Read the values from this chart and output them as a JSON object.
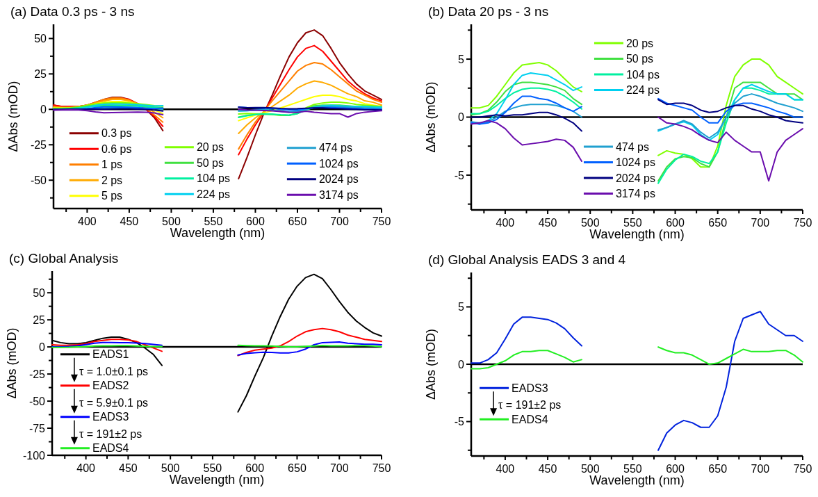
{
  "chart_data": [
    {
      "type": "line",
      "title": "(a) Data 0.3 ps - 3 ns",
      "xlabel": "Wavelength (nm)",
      "ylabel": "ΔAbs (mOD)",
      "legend": "bottom left",
      "xlim": [
        360,
        750
      ],
      "xticks": [
        400,
        {
          "value": 425,
          "label": null
        },
        450,
        {
          "value": 475,
          "label": null
        },
        500,
        {
          "value": 525,
          "label": null
        },
        550,
        {
          "value": 575,
          "label": null
        },
        600,
        {
          "value": 625,
          "label": null
        },
        650,
        {
          "value": 675,
          "label": null
        },
        700,
        {
          "value": 725,
          "label": null
        },
        750,
        {
          "value": 375,
          "label": null
        }
      ],
      "ylim": [
        -70,
        60
      ],
      "yticks": [
        -50,
        {
          "value": -62.5,
          "label": null
        },
        {
          "value": -37.5,
          "label": null
        },
        -25,
        {
          "value": -12.5,
          "label": null
        },
        0,
        {
          "value": 12.5,
          "label": null
        },
        25,
        {
          "value": 37.5,
          "label": null
        },
        50
      ],
      "ref_lines": [
        {
          "axis": "y",
          "value": 0,
          "color": "#000000"
        }
      ],
      "x": [
        360,
        370,
        380,
        390,
        400,
        410,
        420,
        430,
        440,
        450,
        460,
        470,
        480,
        490,
        535,
        580,
        590,
        600,
        610,
        620,
        630,
        640,
        650,
        660,
        670,
        680,
        690,
        700,
        710,
        720,
        730,
        740,
        750
      ],
      "series": [
        {
          "name": "0.3 ps",
          "color": "#8b0000",
          "values": [
            3,
            2,
            2,
            2,
            3,
            5,
            7,
            8.5,
            8.5,
            7,
            4,
            0,
            -6,
            -15,
            null,
            -49,
            -34,
            -18,
            -3,
            10,
            24,
            37,
            47,
            54,
            56,
            52,
            43,
            33,
            25,
            18,
            13,
            10,
            7
          ]
        },
        {
          "name": "0.6 ps",
          "color": "#ff0000",
          "values": [
            3,
            2,
            2,
            2,
            3,
            4.5,
            6,
            7.5,
            8,
            7,
            4,
            0,
            -5,
            -12,
            null,
            -32,
            -21,
            -11,
            -2,
            8,
            18,
            28,
            37,
            43,
            45,
            41,
            34,
            27,
            20,
            15,
            11,
            8,
            6
          ]
        },
        {
          "name": "1 ps",
          "color": "#ff7f00",
          "values": [
            2,
            1.5,
            1.5,
            2,
            3,
            5,
            7,
            8,
            8,
            6.5,
            4,
            0.5,
            -4,
            -9,
            null,
            -28,
            -18,
            -9,
            -1.5,
            6,
            13,
            20,
            27,
            31,
            33,
            32,
            28,
            23,
            18,
            13,
            10,
            7,
            5
          ]
        },
        {
          "name": "2 ps",
          "color": "#ffaa00",
          "values": [
            1.5,
            1,
            1,
            1.5,
            3,
            4.5,
            6,
            7,
            7,
            6,
            4,
            1,
            -2,
            -6,
            null,
            -17,
            -11,
            -6,
            -2,
            2,
            6,
            10,
            15,
            18,
            20,
            19,
            17,
            14,
            11,
            9,
            6,
            5,
            3
          ]
        },
        {
          "name": "5 ps",
          "color": "#ffff00",
          "values": [
            1,
            1,
            1,
            1.5,
            2.5,
            4,
            5,
            5.5,
            5.5,
            5,
            3.5,
            1.5,
            -0.5,
            -3,
            null,
            -8,
            -6,
            -4,
            -2.5,
            -1,
            1,
            3,
            5,
            7,
            9,
            10,
            10,
            9,
            7,
            6,
            4,
            3,
            2
          ]
        },
        {
          "name": "20 ps",
          "color": "#80ff00",
          "values": [
            0.8,
            0.8,
            1,
            1.8,
            2.8,
            3.8,
            4.5,
            4.6,
            4.7,
            4.5,
            4,
            3.3,
            2.6,
            2.2,
            null,
            -3.3,
            -2.9,
            -3.1,
            -3.2,
            -3.6,
            -4.3,
            -4.3,
            -2.5,
            1,
            3.5,
            4.5,
            5,
            5,
            4.5,
            3.5,
            3,
            2.5,
            2
          ]
        },
        {
          "name": "50 ps",
          "color": "#40e040",
          "values": [
            0.2,
            0.3,
            0.6,
            1.3,
            2.2,
            2.8,
            3,
            3,
            2.9,
            2.8,
            2.6,
            2.3,
            1.6,
            1.1,
            null,
            -5.5,
            -4.3,
            -3.6,
            -3.4,
            -3.5,
            -4,
            -4.3,
            -3,
            0,
            2.5,
            3,
            3,
            3,
            2.5,
            2,
            2,
            2,
            1.5
          ]
        },
        {
          "name": "104 ps",
          "color": "#00f0a0",
          "values": [
            0.3,
            0.3,
            0.5,
            1,
            1.6,
            2.1,
            2.4,
            2.5,
            2.5,
            2.4,
            2.2,
            1.8,
            1.3,
            0.7,
            null,
            -5.7,
            -4.5,
            -3.7,
            -3.2,
            -3.4,
            -3.8,
            -4,
            -3,
            -0.5,
            1.5,
            2.5,
            2.5,
            2.3,
            2,
            2,
            2,
            1.5,
            1.5
          ]
        },
        {
          "name": "224 ps",
          "color": "#00d0f0",
          "values": [
            null,
            null,
            -0.3,
            0.3,
            1.5,
            2.8,
            3.6,
            3.8,
            3.7,
            3.6,
            3.2,
            2.8,
            2.3,
            2.6,
            null,
            -1.2,
            -0.9,
            -0.6,
            -0.4,
            -0.7,
            -1.5,
            -2,
            -1.5,
            0,
            1.5,
            2.5,
            2.8,
            2.5,
            2.2,
            2,
            2,
            1.5,
            1.5
          ]
        },
        {
          "name": "474 ps",
          "color": "#20a0d0",
          "values": [
            null,
            null,
            -0.4,
            0,
            0.5,
            0.8,
            1,
            1.1,
            1.1,
            1.1,
            1,
            0.8,
            0.5,
            0,
            null,
            -1.1,
            -0.9,
            -0.6,
            -0.3,
            -0.6,
            -1.3,
            -1.8,
            -1.3,
            0,
            1.2,
            1.8,
            2,
            1.8,
            1.5,
            1.2,
            1,
            0.8,
            0.5
          ]
        },
        {
          "name": "1024 ps",
          "color": "#0060ff",
          "values": [
            null,
            null,
            null,
            -0.2,
            0.4,
            1.2,
            1.8,
            1.8,
            1.6,
            1.5,
            1.2,
            0.8,
            0.5,
            0.9,
            null,
            1.6,
            1.2,
            1,
            0.8,
            0.6,
            0,
            -0.5,
            -0.5,
            0.5,
            1,
            1.2,
            1.2,
            1,
            0.8,
            0.5,
            0.3,
            0,
            0
          ]
        },
        {
          "name": "2024 ps",
          "color": "#000080",
          "values": [
            0,
            0,
            0.1,
            0.2,
            0.1,
            0.2,
            0.2,
            0.3,
            0.4,
            0.4,
            0.2,
            -0.1,
            -0.5,
            -1.2,
            null,
            1.5,
            1.1,
            1.2,
            1.2,
            1,
            0.6,
            0.4,
            0.5,
            0.8,
            1,
            1,
            0.7,
            0.5,
            0.2,
            0,
            -0.3,
            -0.4,
            -0.5
          ]
        },
        {
          "name": "3174 ps",
          "color": "#6a0dad",
          "values": [
            -0.6,
            -0.5,
            -0.3,
            -0.5,
            -1,
            -1.8,
            -2.4,
            -2.3,
            -2.2,
            -2.1,
            -1.9,
            -2,
            -2.6,
            -3.8,
            null,
            0,
            -0.5,
            -0.6,
            -0.8,
            -1.1,
            -1.6,
            -2,
            -2.2,
            -1.3,
            -2,
            -2.5,
            -3,
            -3,
            -5.5,
            -3,
            -2,
            -1.5,
            -1
          ]
        }
      ]
    },
    {
      "type": "line",
      "title": "(b) Data 20 ps - 3 ns",
      "xlabel": "Wavelength (nm)",
      "ylabel": "ΔAbs (mOD)",
      "legend": "center",
      "xlim": [
        360,
        750
      ],
      "xticks": [
        400,
        {
          "value": 425,
          "label": null
        },
        450,
        {
          "value": 475,
          "label": null
        },
        500,
        {
          "value": 525,
          "label": null
        },
        550,
        {
          "value": 575,
          "label": null
        },
        600,
        {
          "value": 625,
          "label": null
        },
        650,
        {
          "value": 675,
          "label": null
        },
        700,
        {
          "value": 725,
          "label": null
        },
        750,
        {
          "value": 375,
          "label": null
        }
      ],
      "ylim": [
        -8,
        8
      ],
      "yticks": [
        -5,
        {
          "value": -7.5,
          "label": null
        },
        {
          "value": -2.5,
          "label": null
        },
        0,
        {
          "value": 2.5,
          "label": null
        },
        5,
        {
          "value": 7.5,
          "label": null
        }
      ],
      "ref_lines": [
        {
          "axis": "y",
          "value": 0,
          "color": "#000000"
        }
      ],
      "x": [
        360,
        370,
        380,
        390,
        400,
        410,
        420,
        430,
        440,
        450,
        460,
        470,
        480,
        490,
        535,
        580,
        590,
        600,
        610,
        620,
        630,
        640,
        650,
        660,
        670,
        680,
        690,
        700,
        710,
        720,
        730,
        740,
        750
      ],
      "series": [
        {
          "name": "20 ps",
          "color": "#80ff00",
          "values": [
            0.8,
            0.8,
            1,
            1.8,
            2.8,
            3.8,
            4.5,
            4.6,
            4.7,
            4.5,
            4,
            3.3,
            2.6,
            2.2,
            null,
            -3.3,
            -2.9,
            -3.1,
            -3.2,
            -3.6,
            -4.3,
            -4.3,
            -2.5,
            1,
            3.5,
            4.5,
            5,
            5,
            4.5,
            3.5,
            3,
            2.5,
            2
          ]
        },
        {
          "name": "50 ps",
          "color": "#40e040",
          "values": [
            0.2,
            0.3,
            0.6,
            1.3,
            2.2,
            2.8,
            3,
            3,
            2.9,
            2.8,
            2.6,
            2.3,
            1.6,
            1.1,
            null,
            -5.5,
            -4.3,
            -3.6,
            -3.4,
            -3.5,
            -4,
            -4.3,
            -3,
            0,
            2.5,
            3,
            3,
            3,
            2.5,
            2,
            2,
            2,
            1.5
          ]
        },
        {
          "name": "104 ps",
          "color": "#00f0a0",
          "values": [
            0.3,
            0.3,
            0.5,
            1,
            1.6,
            2.1,
            2.4,
            2.5,
            2.5,
            2.4,
            2.2,
            1.8,
            1.3,
            0.7,
            null,
            -5.7,
            -4.5,
            -3.7,
            -3.2,
            -3.4,
            -3.8,
            -4,
            -3,
            -0.5,
            1.5,
            2.5,
            2.5,
            2.3,
            2,
            2,
            2,
            1.5,
            1.5
          ]
        },
        {
          "name": "224 ps",
          "color": "#00d0f0",
          "values": [
            -0.5,
            -0.6,
            -0.3,
            0.3,
            1.5,
            2.8,
            3.6,
            3.8,
            3.7,
            3.6,
            3.2,
            2.8,
            2.3,
            2.6,
            null,
            -1.2,
            -0.9,
            -0.6,
            -0.4,
            -0.7,
            -1.5,
            -2,
            -1.5,
            0,
            1.5,
            2.5,
            2.8,
            2.5,
            2.2,
            2,
            2,
            1.5,
            1.5
          ]
        },
        {
          "name": "474 ps",
          "color": "#20a0d0",
          "values": [
            -0.4,
            -0.5,
            -0.4,
            0,
            0.5,
            0.8,
            1,
            1.1,
            1.1,
            1.1,
            1,
            0.8,
            0.5,
            0,
            null,
            -1.1,
            -0.9,
            -0.6,
            -0.3,
            -0.6,
            -1.3,
            -1.8,
            -1.3,
            0,
            1.2,
            1.8,
            2,
            1.8,
            1.5,
            1.2,
            1,
            0.8,
            0.5
          ]
        },
        {
          "name": "1024 ps",
          "color": "#0060ff",
          "values": [
            -0.5,
            -0.6,
            -0.5,
            -0.2,
            0.4,
            1.2,
            1.8,
            1.8,
            1.6,
            1.5,
            1.2,
            0.8,
            0.5,
            0.9,
            null,
            1.6,
            1.2,
            1,
            0.8,
            0.6,
            0,
            -0.5,
            -0.5,
            0.5,
            1,
            1.2,
            1.2,
            1,
            0.8,
            0.5,
            0.3,
            0,
            0
          ]
        },
        {
          "name": "2024 ps",
          "color": "#000080",
          "values": [
            0,
            0,
            0.1,
            0.2,
            0.1,
            0.2,
            0.2,
            0.3,
            0.4,
            0.4,
            0.2,
            -0.1,
            -0.5,
            -1.2,
            null,
            1.5,
            1.1,
            1.2,
            1.2,
            1,
            0.6,
            0.4,
            0.5,
            0.8,
            1,
            1,
            0.7,
            0.5,
            0.2,
            0,
            -0.3,
            -0.4,
            -0.5
          ]
        },
        {
          "name": "3174 ps",
          "color": "#6a0dad",
          "values": [
            -0.6,
            -0.5,
            -0.3,
            -0.5,
            -1,
            -1.8,
            -2.4,
            -2.3,
            -2.2,
            -2.1,
            -1.9,
            -2,
            -2.6,
            -3.8,
            null,
            0,
            -0.5,
            -0.6,
            -0.8,
            -1.1,
            -1.6,
            -2,
            -2.2,
            -1.3,
            -2,
            -2.5,
            -3,
            -3,
            -5.5,
            -3,
            -2,
            -1.5,
            -1
          ]
        }
      ]
    },
    {
      "type": "line",
      "title": "(c) Global Analysis",
      "xlabel": "Wavelength (nm)",
      "ylabel": "ΔAbs (mOD)",
      "legend": "bottom left",
      "annotations": [
        "τ = 1.0±0.1 ps",
        "τ = 5.9±0.1 ps",
        "τ = 191±2 ps"
      ],
      "xlim": [
        360,
        750
      ],
      "xticks": [
        400,
        {
          "value": 425,
          "label": null
        },
        450,
        {
          "value": 475,
          "label": null
        },
        500,
        {
          "value": 525,
          "label": null
        },
        550,
        {
          "value": 575,
          "label": null
        },
        600,
        {
          "value": 625,
          "label": null
        },
        650,
        {
          "value": 675,
          "label": null
        },
        700,
        {
          "value": 725,
          "label": null
        },
        750,
        {
          "value": 375,
          "label": null
        }
      ],
      "ylim": [
        -100,
        70
      ],
      "yticks": [
        -100,
        {
          "value": -87.5,
          "label": null
        },
        -75,
        {
          "value": -62.5,
          "label": null
        },
        -50,
        {
          "value": -37.5,
          "label": null
        },
        -25,
        {
          "value": -12.5,
          "label": null
        },
        0,
        {
          "value": 12.5,
          "label": null
        },
        25,
        {
          "value": 37.5,
          "label": null
        },
        50,
        {
          "value": 62.5,
          "label": null
        }
      ],
      "ref_lines": [
        {
          "axis": "y",
          "value": 0,
          "color": "#000000"
        }
      ],
      "x": [
        360,
        370,
        380,
        390,
        400,
        410,
        420,
        430,
        440,
        450,
        460,
        470,
        480,
        490,
        535,
        580,
        590,
        600,
        610,
        620,
        630,
        640,
        650,
        660,
        670,
        680,
        690,
        700,
        710,
        720,
        730,
        740,
        750
      ],
      "series": [
        {
          "name": "EADS1",
          "color": "#000000",
          "values": [
            6,
            4,
            3,
            3,
            4,
            6,
            8,
            9,
            9,
            7,
            4,
            -1,
            -7,
            -17,
            null,
            -60,
            -45,
            -27,
            -10,
            10,
            28,
            44,
            56,
            64,
            67,
            63,
            53,
            42,
            32,
            24,
            18,
            13,
            10
          ]
        },
        {
          "name": "EADS2",
          "color": "#ff0000",
          "values": [
            2,
            1.5,
            1.5,
            2,
            3,
            5,
            6,
            7,
            7,
            6.5,
            5,
            2,
            -1,
            -4,
            null,
            -8,
            -5,
            -3,
            -2,
            -1,
            1,
            5,
            10,
            14,
            16,
            17,
            16,
            14,
            11,
            9,
            7,
            6,
            5
          ]
        },
        {
          "name": "EADS3",
          "color": "#0000ff",
          "values": [
            0.1,
            0.1,
            0.4,
            1,
            2.2,
            3.5,
            4.1,
            4.1,
            4,
            3.9,
            3.6,
            3.1,
            2.3,
            1.6,
            null,
            -7.5,
            -6,
            -5.3,
            -4.9,
            -5.1,
            -5.5,
            -5.5,
            -4.5,
            -2,
            2,
            4,
            4.3,
            4.6,
            3.5,
            3,
            2.5,
            2.5,
            2
          ]
        },
        {
          "name": "EADS4",
          "color": "#22ee22",
          "values": [
            -0.4,
            -0.4,
            -0.3,
            0,
            0.3,
            0.8,
            1.1,
            1.1,
            1.2,
            1.2,
            0.9,
            0.6,
            0.2,
            0.4,
            null,
            1.5,
            1.2,
            1,
            1,
            0.8,
            0.4,
            0,
            0.1,
            0.5,
            0.9,
            1.3,
            1.1,
            1.1,
            1.1,
            1.2,
            1.2,
            0.8,
            0.2
          ]
        }
      ]
    },
    {
      "type": "line",
      "title": "(d) Global Analysis EADS 3 and 4",
      "xlabel": "Wavelength (nm)",
      "ylabel": "ΔAbs (mOD)",
      "legend": "bottom left",
      "annotations": [
        "τ = 191±2 ps"
      ],
      "xlim": [
        360,
        750
      ],
      "xticks": [
        400,
        {
          "value": 425,
          "label": null
        },
        450,
        {
          "value": 475,
          "label": null
        },
        500,
        {
          "value": 525,
          "label": null
        },
        550,
        {
          "value": 575,
          "label": null
        },
        600,
        {
          "value": 625,
          "label": null
        },
        650,
        {
          "value": 675,
          "label": null
        },
        700,
        {
          "value": 725,
          "label": null
        },
        750,
        {
          "value": 375,
          "label": null
        }
      ],
      "ylim": [
        -8,
        8
      ],
      "yticks": [
        -5,
        {
          "value": -7.5,
          "label": null
        },
        {
          "value": -2.5,
          "label": null
        },
        0,
        {
          "value": 2.5,
          "label": null
        },
        5,
        {
          "value": 7.5,
          "label": null
        }
      ],
      "ref_lines": [
        {
          "axis": "y",
          "value": 0,
          "color": "#000000"
        }
      ],
      "x": [
        360,
        370,
        380,
        390,
        400,
        410,
        420,
        430,
        440,
        450,
        460,
        470,
        480,
        490,
        535,
        580,
        590,
        600,
        610,
        620,
        630,
        640,
        650,
        660,
        670,
        680,
        690,
        700,
        710,
        720,
        730,
        740,
        750
      ],
      "series": [
        {
          "name": "EADS3",
          "color": "#0022dd",
          "values": [
            0.1,
            0.1,
            0.4,
            1,
            2.2,
            3.5,
            4.1,
            4.1,
            4,
            3.9,
            3.6,
            3.1,
            2.3,
            1.6,
            null,
            -7.5,
            -6,
            -5.3,
            -4.9,
            -5.1,
            -5.5,
            -5.5,
            -4.5,
            -2,
            2,
            4,
            4.3,
            4.6,
            3.5,
            3,
            2.5,
            2.5,
            2
          ]
        },
        {
          "name": "EADS4",
          "color": "#22ee22",
          "values": [
            -0.4,
            -0.4,
            -0.3,
            0,
            0.3,
            0.8,
            1.1,
            1.1,
            1.2,
            1.2,
            0.9,
            0.6,
            0.2,
            0.4,
            null,
            1.5,
            1.2,
            1,
            1,
            0.8,
            0.4,
            0,
            0.1,
            0.5,
            0.9,
            1.3,
            1.1,
            1.1,
            1.1,
            1.2,
            1.2,
            0.8,
            0.2
          ]
        }
      ]
    }
  ]
}
